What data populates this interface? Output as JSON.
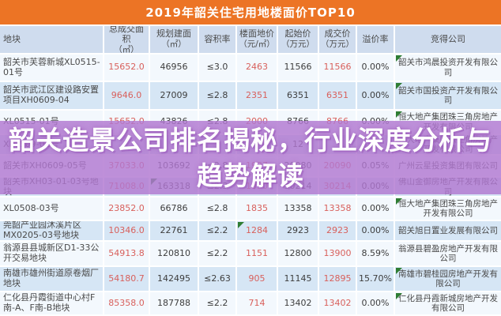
{
  "title": "2019年韶关住宅用地楼面价TOP10",
  "headline": {
    "line1": "韶关造景公司排名揭秘，行业深度分析与",
    "line2": "趋势解读"
  },
  "colors": {
    "title_bar": "#ec7425",
    "header_bg": "#cfdcee",
    "row_light": "#f3f8fd",
    "row_blue": "#d6e6f5",
    "value_red": "#d8605c",
    "overlay_purple": "rgba(177,119,209,0.82)",
    "headline_text": "#ffffff",
    "corner_mark_green": "#2f7d33"
  },
  "chart_data": {
    "type": "table",
    "title": "2019年韶关住宅用地楼面价TOP10",
    "columns": [
      "地块",
      "总成交面积（㎡）",
      "规划建面（㎡）",
      "容积率",
      "楼面地价（元/㎡）",
      "起始价（万元）",
      "成交价（万元）",
      "溢价率",
      "竞得公司"
    ],
    "rows": [
      [
        "韶关市芙蓉新城XL0515-01号",
        "15652.0",
        "46956",
        "≤3.0",
        "2463",
        "11566",
        "11566",
        "0.00%",
        "韶关市鸿晨投资开发有限公司"
      ],
      [
        "韶关市武江区建设路安置项目XH0609-04",
        "9646.0",
        "27009",
        "≤2.8",
        "2351",
        "6351",
        "6351",
        "0.00%",
        "韶关市国投资产开发有限公司"
      ],
      [
        "XL0515-01号",
        "15652.0",
        "43826",
        "≤2.8",
        "2000",
        "8766",
        "8766",
        "0.00%",
        "恒大地产集团珠三角房地产开发有限公司"
      ],
      [
        "XL0509-01号",
        "",
        "",
        "",
        "",
        "12",
        "",
        "",
        "恒大地产集团珠三角房地产开发有限公司"
      ],
      [
        "韶关市XH0609-05号",
        "37033.0",
        "103692",
        "≤2.8",
        "1937",
        "20080",
        "20090",
        "0.05%",
        "广州云星投资集团有限公司"
      ],
      [
        "韶关市XH03-01-03号地块",
        "71008.0",
        "163318",
        "≤2.3",
        "1850",
        "30214",
        "30214",
        "0.00%",
        "佛山金御房地产开发有限公司"
      ],
      [
        "XL0508-03号",
        "23852.0",
        "66786",
        "≤2.8",
        "1835",
        "13358",
        "13358",
        "0.00%",
        "恒大地产集团珠三角房地产开发有限公司"
      ],
      [
        "莞韶产业园沐溪片区MX0205-03号地块",
        "10346.0",
        "22761",
        "≤2.2",
        "1284",
        "2923",
        "2923",
        "0.00%",
        "韶关旭日置业发展有限公司"
      ],
      [
        "翁源县县城新区D1-33公开交易地块",
        "54913.8",
        "120810",
        "≤2.2",
        "1151",
        "12800",
        "13900",
        "8.59%",
        "翁源县碧盈房地产开发有限公司"
      ],
      [
        "南雄市雄州街道原卷烟厂地块",
        "54180.7",
        "142495",
        "≤2.63",
        "905",
        "11145",
        "12895",
        "15.70%",
        "南雄市碧桂园房地产开发有限公司"
      ],
      [
        "仁化县丹霞街道中心村F南-A、F南-B地块",
        "85358.0",
        "187788",
        "≤2.2",
        "714",
        "13402",
        "13402",
        "0.00%",
        "仁化县丹霞新城房地产开发有限公司"
      ]
    ]
  },
  "corner_marks": [
    {
      "row": 0,
      "col": 8
    },
    {
      "row": 1,
      "col": 8
    },
    {
      "row": 2,
      "col": 8
    },
    {
      "row": 5,
      "col": 2
    },
    {
      "row": 6,
      "col": 8
    },
    {
      "row": 7,
      "col": 4
    },
    {
      "row": 9,
      "col": 8
    },
    {
      "row": 10,
      "col": 8
    }
  ]
}
